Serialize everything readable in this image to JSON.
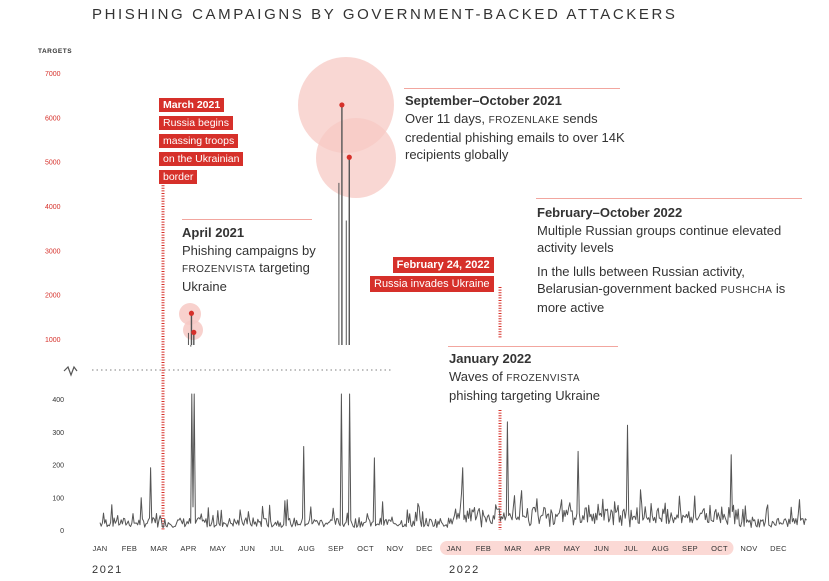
{
  "title": "PHISHING CAMPAIGNS BY GOVERNMENT-BACKED ATTACKERS",
  "colors": {
    "accent": "#d6302a",
    "accent_light": "#f7c9c4",
    "line": "#555555",
    "pill": "#fbd9d5"
  },
  "chart_data": {
    "type": "line",
    "title": "PHISHING CAMPAIGNS BY GOVERNMENT-BACKED ATTACKERS",
    "ylabel": "TARGETS",
    "xlabel": "",
    "y_ticks_upper": [
      "7000",
      "6000",
      "5000",
      "4000",
      "3000",
      "2000",
      "1000"
    ],
    "y_ticks_lower": [
      "400",
      "300",
      "200",
      "100",
      "0"
    ],
    "y_break_between": [
      420,
      1000
    ],
    "months": [
      "JAN",
      "FEB",
      "MAR",
      "APR",
      "MAY",
      "JUN",
      "JUL",
      "AUG",
      "SEP",
      "OCT",
      "NOV",
      "DEC",
      "JAN",
      "FEB",
      "MAR",
      "APR",
      "MAY",
      "JUN",
      "JUL",
      "AUG",
      "SEP",
      "OCT",
      "NOV",
      "DEC"
    ],
    "years": [
      "2021",
      "2022"
    ],
    "highlighted_month_range": [
      "JAN 2022",
      "OCT 2022"
    ],
    "peaks": [
      {
        "month_index": 1.7,
        "value": 190
      },
      {
        "month_index": 3.1,
        "value": 1580
      },
      {
        "month_index": 3.18,
        "value": 1150
      },
      {
        "month_index": 6.9,
        "value": 255
      },
      {
        "month_index": 8.2,
        "value": 6280
      },
      {
        "month_index": 8.45,
        "value": 5100
      },
      {
        "month_index": 9.3,
        "value": 220
      },
      {
        "month_index": 12.3,
        "value": 190
      },
      {
        "month_index": 13.8,
        "value": 330
      },
      {
        "month_index": 16.2,
        "value": 240
      },
      {
        "month_index": 17.9,
        "value": 320
      },
      {
        "month_index": 21.4,
        "value": 230
      }
    ]
  },
  "annotations": {
    "march2021": {
      "lines": [
        "March 2021",
        "Russia begins",
        "massing troops",
        "on the Ukrainian",
        "border"
      ]
    },
    "april2021": {
      "heading": "April 2021",
      "body_pre": "Phishing campaigns by ",
      "actor": "FROZENVISTA",
      "body_post": " targeting Ukraine"
    },
    "sepoct2021": {
      "heading": "September–October 2021",
      "body_pre": "Over 11 days, ",
      "actor": "FROZENLAKE",
      "body_post": " sends credential phishing emails to over 14K recipients globally"
    },
    "feboct2022": {
      "heading": "February–October 2022",
      "body1": "Multiple Russian groups continue elevated activity levels",
      "body2_pre": "In the lulls between Russian activity, Belarusian-government backed ",
      "actor": "PUSHCHA",
      "body2_post": " is more active"
    },
    "feb24_2022": {
      "lines": [
        "February 24, 2022",
        "Russia invades Ukraine"
      ]
    },
    "jan2022": {
      "heading": "January 2022",
      "body_pre": "Waves of ",
      "actor": "FROZENVISTA",
      "body_post": " phishing targeting Ukraine"
    }
  }
}
